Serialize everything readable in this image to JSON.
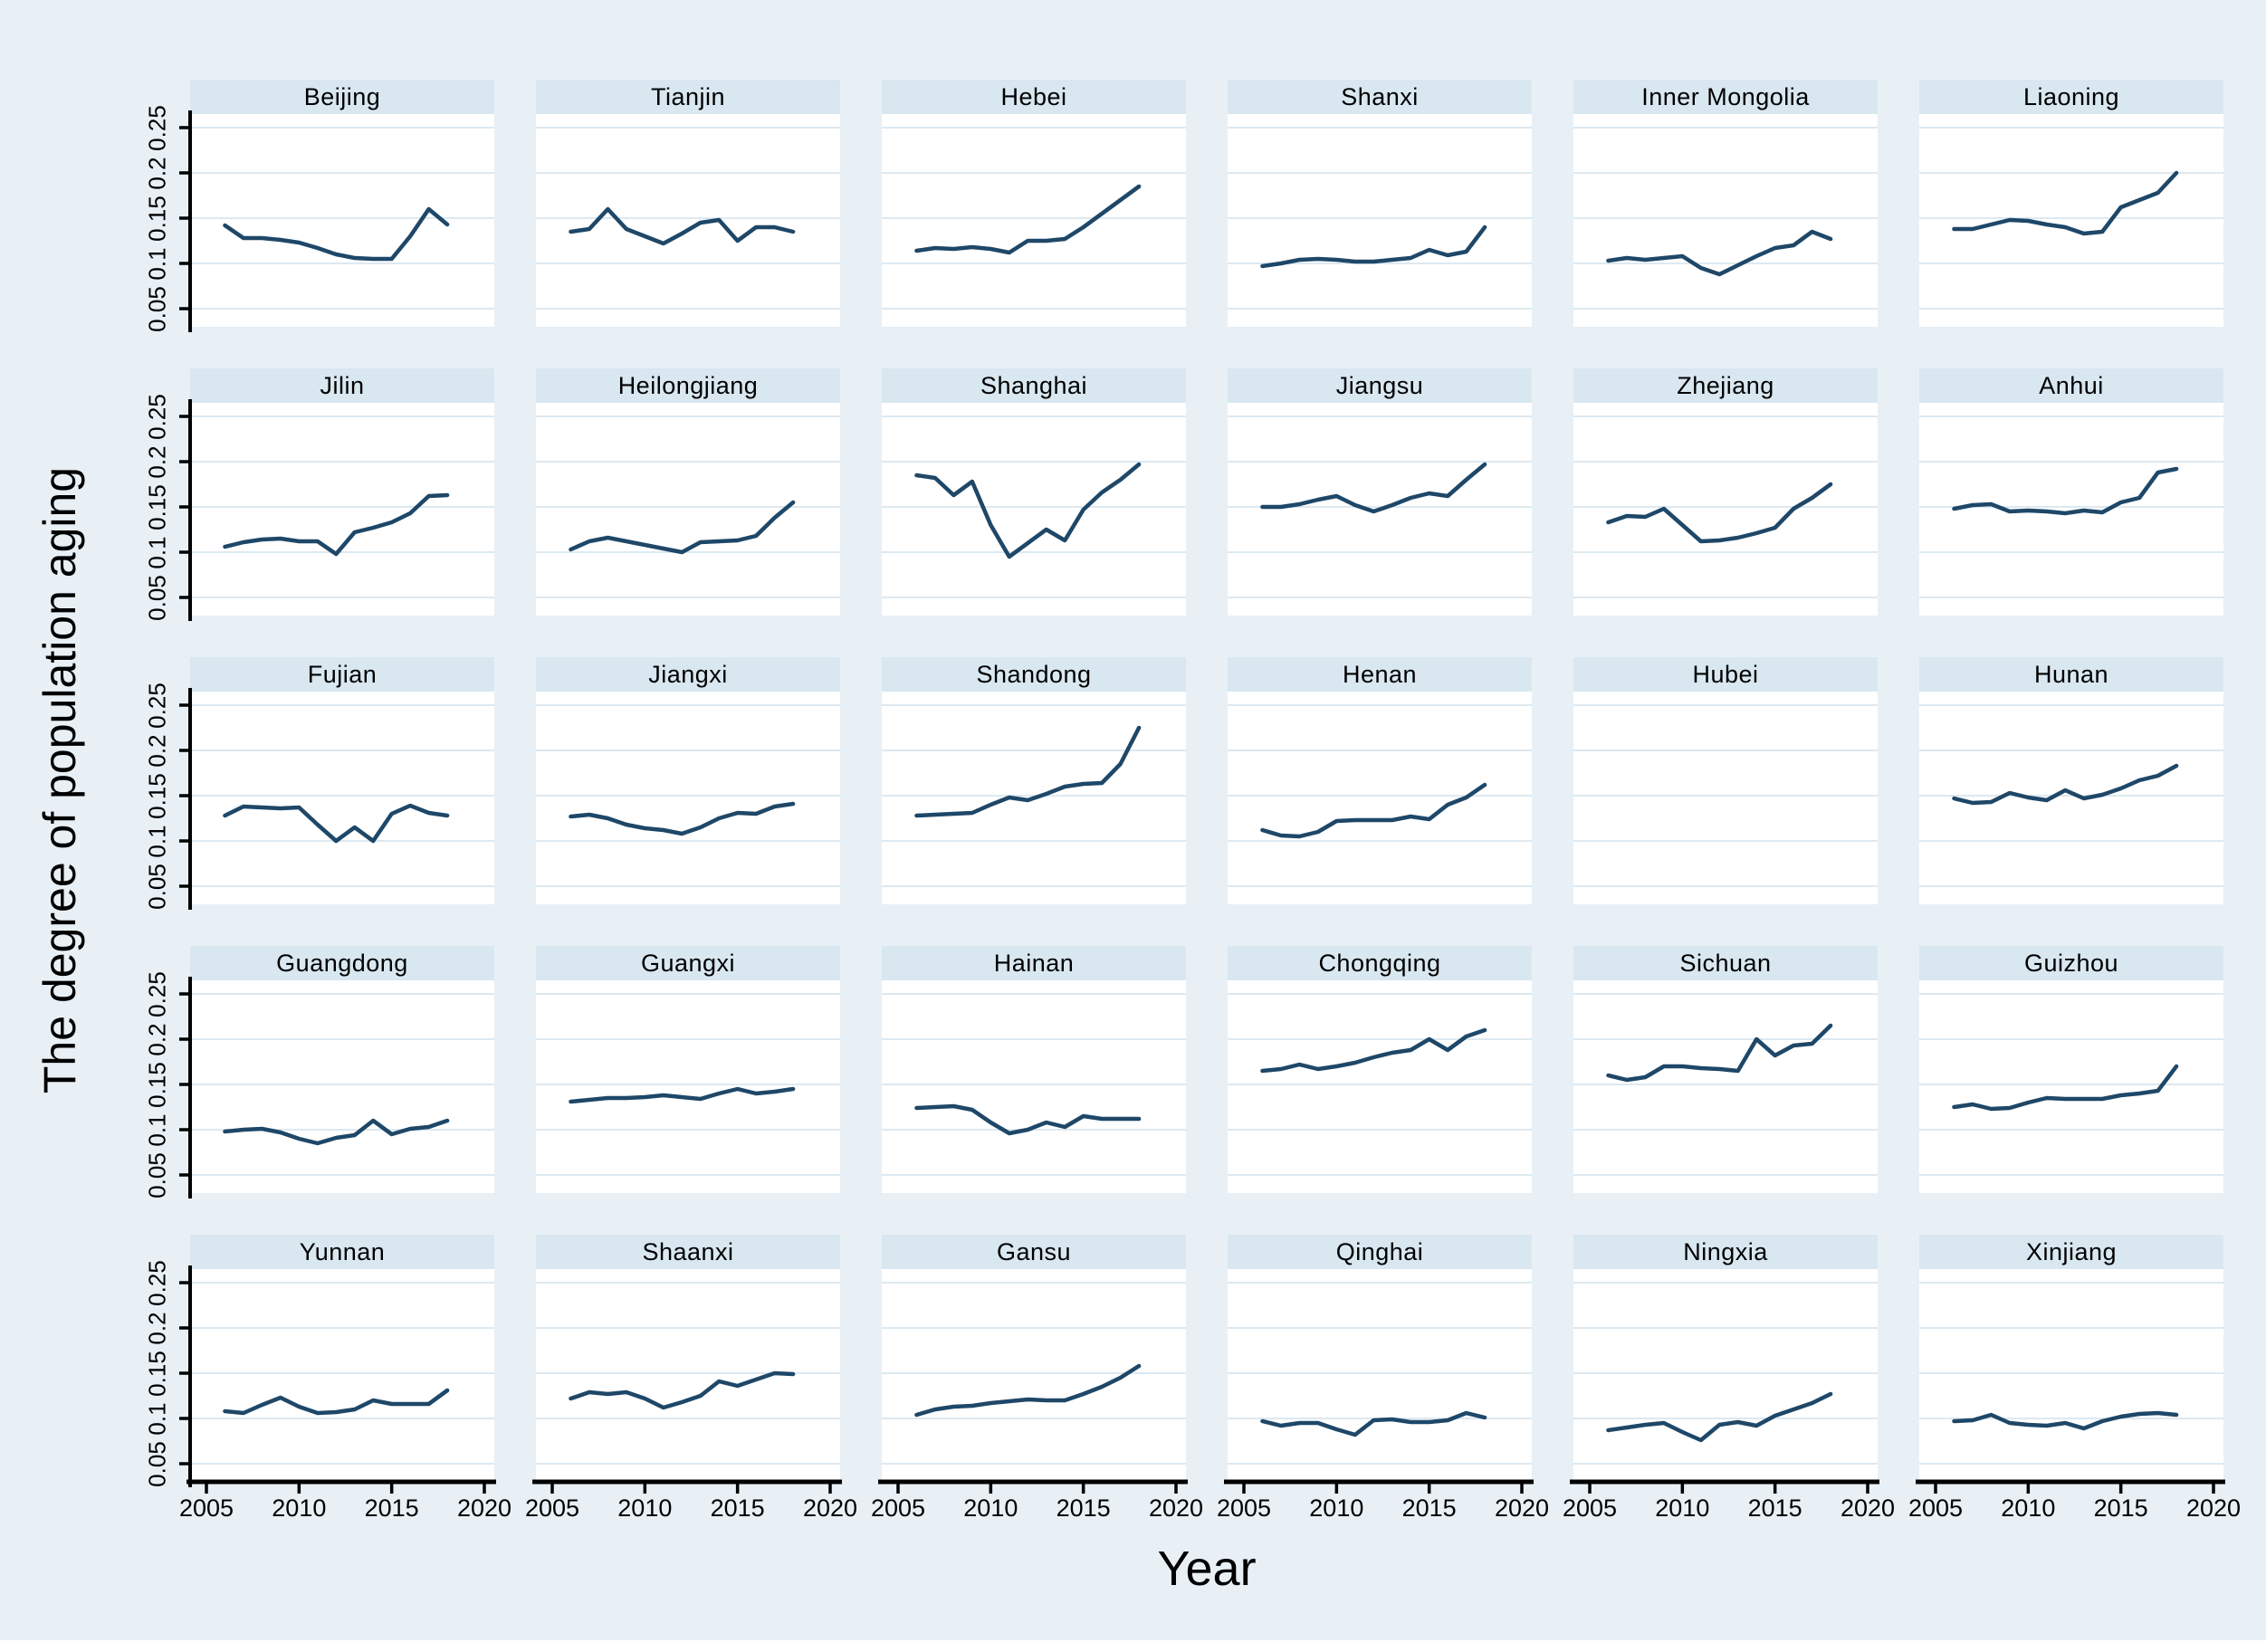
{
  "figure": {
    "y_axis_title": "The degree of population aging",
    "x_axis_title": "Year",
    "background_color": "#e8f0f6",
    "panel_header_color": "#d8e7f0",
    "plot_background_color": "#ffffff",
    "gridline_color": "#dde9f1",
    "line_color": "#1e4768",
    "axis_color": "#000000"
  },
  "chart_data": {
    "type": "line",
    "layout": "small-multiples 5 rows x 6 columns",
    "title": "",
    "xlabel": "Year",
    "ylabel": "The degree of population aging",
    "xticks": [
      2005,
      2010,
      2015,
      2020
    ],
    "yticks": [
      0.05,
      0.1,
      0.15,
      0.2,
      0.25
    ],
    "ytick_labels": [
      "0.05",
      "0.1",
      "0.15",
      "0.2",
      "0.25"
    ],
    "xlim": [
      2005,
      2020
    ],
    "ylim": [
      0.05,
      0.25
    ],
    "grid": true,
    "legend_position": "none",
    "x": [
      2006,
      2007,
      2008,
      2009,
      2010,
      2011,
      2012,
      2013,
      2014,
      2015,
      2016,
      2017,
      2018
    ],
    "series": [
      {
        "name": "Beijing",
        "values": [
          0.142,
          0.128,
          0.128,
          0.126,
          0.123,
          0.117,
          0.11,
          0.106,
          0.105,
          0.105,
          0.13,
          0.16,
          0.143
        ]
      },
      {
        "name": "Tianjin",
        "values": [
          0.135,
          0.138,
          0.16,
          0.138,
          0.13,
          0.122,
          0.133,
          0.145,
          0.148,
          0.125,
          0.14,
          0.14,
          0.135
        ]
      },
      {
        "name": "Hebei",
        "values": [
          0.114,
          0.117,
          0.116,
          0.118,
          0.116,
          0.112,
          0.125,
          0.125,
          0.127,
          0.14,
          0.155,
          0.17,
          0.185
        ]
      },
      {
        "name": "Shanxi",
        "values": [
          0.097,
          0.1,
          0.104,
          0.105,
          0.104,
          0.102,
          0.102,
          0.104,
          0.106,
          0.115,
          0.109,
          0.113,
          0.14
        ]
      },
      {
        "name": "Inner Mongolia",
        "values": [
          0.103,
          0.106,
          0.104,
          0.106,
          0.108,
          0.095,
          0.088,
          0.098,
          0.108,
          0.117,
          0.12,
          0.135,
          0.127
        ]
      },
      {
        "name": "Liaoning",
        "values": [
          0.138,
          0.138,
          0.143,
          0.148,
          0.147,
          0.143,
          0.14,
          0.133,
          0.135,
          0.162,
          0.17,
          0.178,
          0.2
        ]
      },
      {
        "name": "Jilin",
        "values": [
          0.106,
          0.111,
          0.114,
          0.115,
          0.112,
          0.112,
          0.098,
          0.122,
          0.127,
          0.133,
          0.143,
          0.162,
          0.163
        ]
      },
      {
        "name": "Heilongjiang",
        "values": [
          0.103,
          0.112,
          0.116,
          0.112,
          0.108,
          0.104,
          0.1,
          0.111,
          0.112,
          0.113,
          0.118,
          0.138,
          0.155
        ]
      },
      {
        "name": "Shanghai",
        "values": [
          0.185,
          0.182,
          0.163,
          0.178,
          0.13,
          0.095,
          0.11,
          0.125,
          0.113,
          0.147,
          0.166,
          0.18,
          0.197
        ]
      },
      {
        "name": "Jiangsu",
        "values": [
          0.15,
          0.15,
          0.153,
          0.158,
          0.162,
          0.152,
          0.145,
          0.152,
          0.16,
          0.165,
          0.162,
          0.18,
          0.197
        ]
      },
      {
        "name": "Zhejiang",
        "values": [
          0.133,
          0.14,
          0.139,
          0.148,
          0.13,
          0.112,
          0.113,
          0.116,
          0.121,
          0.127,
          0.148,
          0.16,
          0.175
        ]
      },
      {
        "name": "Anhui",
        "values": [
          0.148,
          0.152,
          0.153,
          0.145,
          0.146,
          0.145,
          0.143,
          0.146,
          0.144,
          0.155,
          0.16,
          0.188,
          0.192
        ]
      },
      {
        "name": "Fujian",
        "values": [
          0.128,
          0.138,
          0.137,
          0.136,
          0.137,
          0.118,
          0.1,
          0.115,
          0.1,
          0.13,
          0.139,
          0.131,
          0.128
        ]
      },
      {
        "name": "Jiangxi",
        "values": [
          0.127,
          0.129,
          0.125,
          0.118,
          0.114,
          0.112,
          0.108,
          0.115,
          0.125,
          0.131,
          0.13,
          0.138,
          0.141
        ]
      },
      {
        "name": "Shandong",
        "values": [
          0.128,
          0.129,
          0.13,
          0.131,
          0.14,
          0.148,
          0.145,
          0.152,
          0.16,
          0.163,
          0.164,
          0.185,
          0.225
        ]
      },
      {
        "name": "Henan",
        "values": [
          0.112,
          0.106,
          0.105,
          0.11,
          0.122,
          0.123,
          0.123,
          0.123,
          0.127,
          0.124,
          0.14,
          0.148,
          0.162
        ]
      },
      {
        "name": "Hubei",
        "values": []
      },
      {
        "name": "Hunan",
        "values": [
          0.147,
          0.142,
          0.143,
          0.153,
          0.148,
          0.145,
          0.156,
          0.147,
          0.151,
          0.158,
          0.167,
          0.172,
          0.183
        ]
      },
      {
        "name": "Guangdong",
        "values": [
          0.098,
          0.1,
          0.101,
          0.097,
          0.09,
          0.085,
          0.091,
          0.094,
          0.11,
          0.095,
          0.101,
          0.103,
          0.11
        ]
      },
      {
        "name": "Guangxi",
        "values": [
          0.131,
          0.133,
          0.135,
          0.135,
          0.136,
          0.138,
          0.136,
          0.134,
          0.14,
          0.145,
          0.14,
          0.142,
          0.145
        ]
      },
      {
        "name": "Hainan",
        "values": [
          0.124,
          0.125,
          0.126,
          0.122,
          0.108,
          0.096,
          0.1,
          0.108,
          0.103,
          0.115,
          0.112,
          0.112,
          0.112
        ]
      },
      {
        "name": "Chongqing",
        "values": [
          0.165,
          0.167,
          0.172,
          0.167,
          0.17,
          0.174,
          0.18,
          0.185,
          0.188,
          0.2,
          0.188,
          0.203,
          0.21
        ]
      },
      {
        "name": "Sichuan",
        "values": [
          0.16,
          0.155,
          0.158,
          0.17,
          0.17,
          0.168,
          0.167,
          0.165,
          0.2,
          0.182,
          0.193,
          0.195,
          0.215
        ]
      },
      {
        "name": "Guizhou",
        "values": [
          0.125,
          0.128,
          0.123,
          0.124,
          0.13,
          0.135,
          0.134,
          0.134,
          0.134,
          0.138,
          0.14,
          0.143,
          0.17
        ]
      },
      {
        "name": "Yunnan",
        "values": [
          0.108,
          0.106,
          0.115,
          0.123,
          0.113,
          0.106,
          0.107,
          0.11,
          0.12,
          0.116,
          0.116,
          0.116,
          0.131
        ]
      },
      {
        "name": "Shaanxi",
        "values": [
          0.122,
          0.129,
          0.127,
          0.129,
          0.122,
          0.112,
          0.118,
          0.125,
          0.141,
          0.136,
          0.143,
          0.15,
          0.149
        ]
      },
      {
        "name": "Gansu",
        "values": [
          0.104,
          0.11,
          0.113,
          0.114,
          0.117,
          0.119,
          0.121,
          0.12,
          0.12,
          0.127,
          0.135,
          0.145,
          0.158
        ]
      },
      {
        "name": "Qinghai",
        "values": [
          0.097,
          0.092,
          0.095,
          0.095,
          0.088,
          0.082,
          0.098,
          0.099,
          0.096,
          0.096,
          0.098,
          0.106,
          0.101
        ]
      },
      {
        "name": "Ningxia",
        "values": [
          0.087,
          0.09,
          0.093,
          0.095,
          0.085,
          0.076,
          0.093,
          0.096,
          0.092,
          0.103,
          0.11,
          0.117,
          0.127
        ]
      },
      {
        "name": "Xinjiang",
        "values": [
          0.097,
          0.098,
          0.104,
          0.095,
          0.093,
          0.092,
          0.095,
          0.089,
          0.097,
          0.102,
          0.105,
          0.106,
          0.104
        ]
      }
    ]
  }
}
